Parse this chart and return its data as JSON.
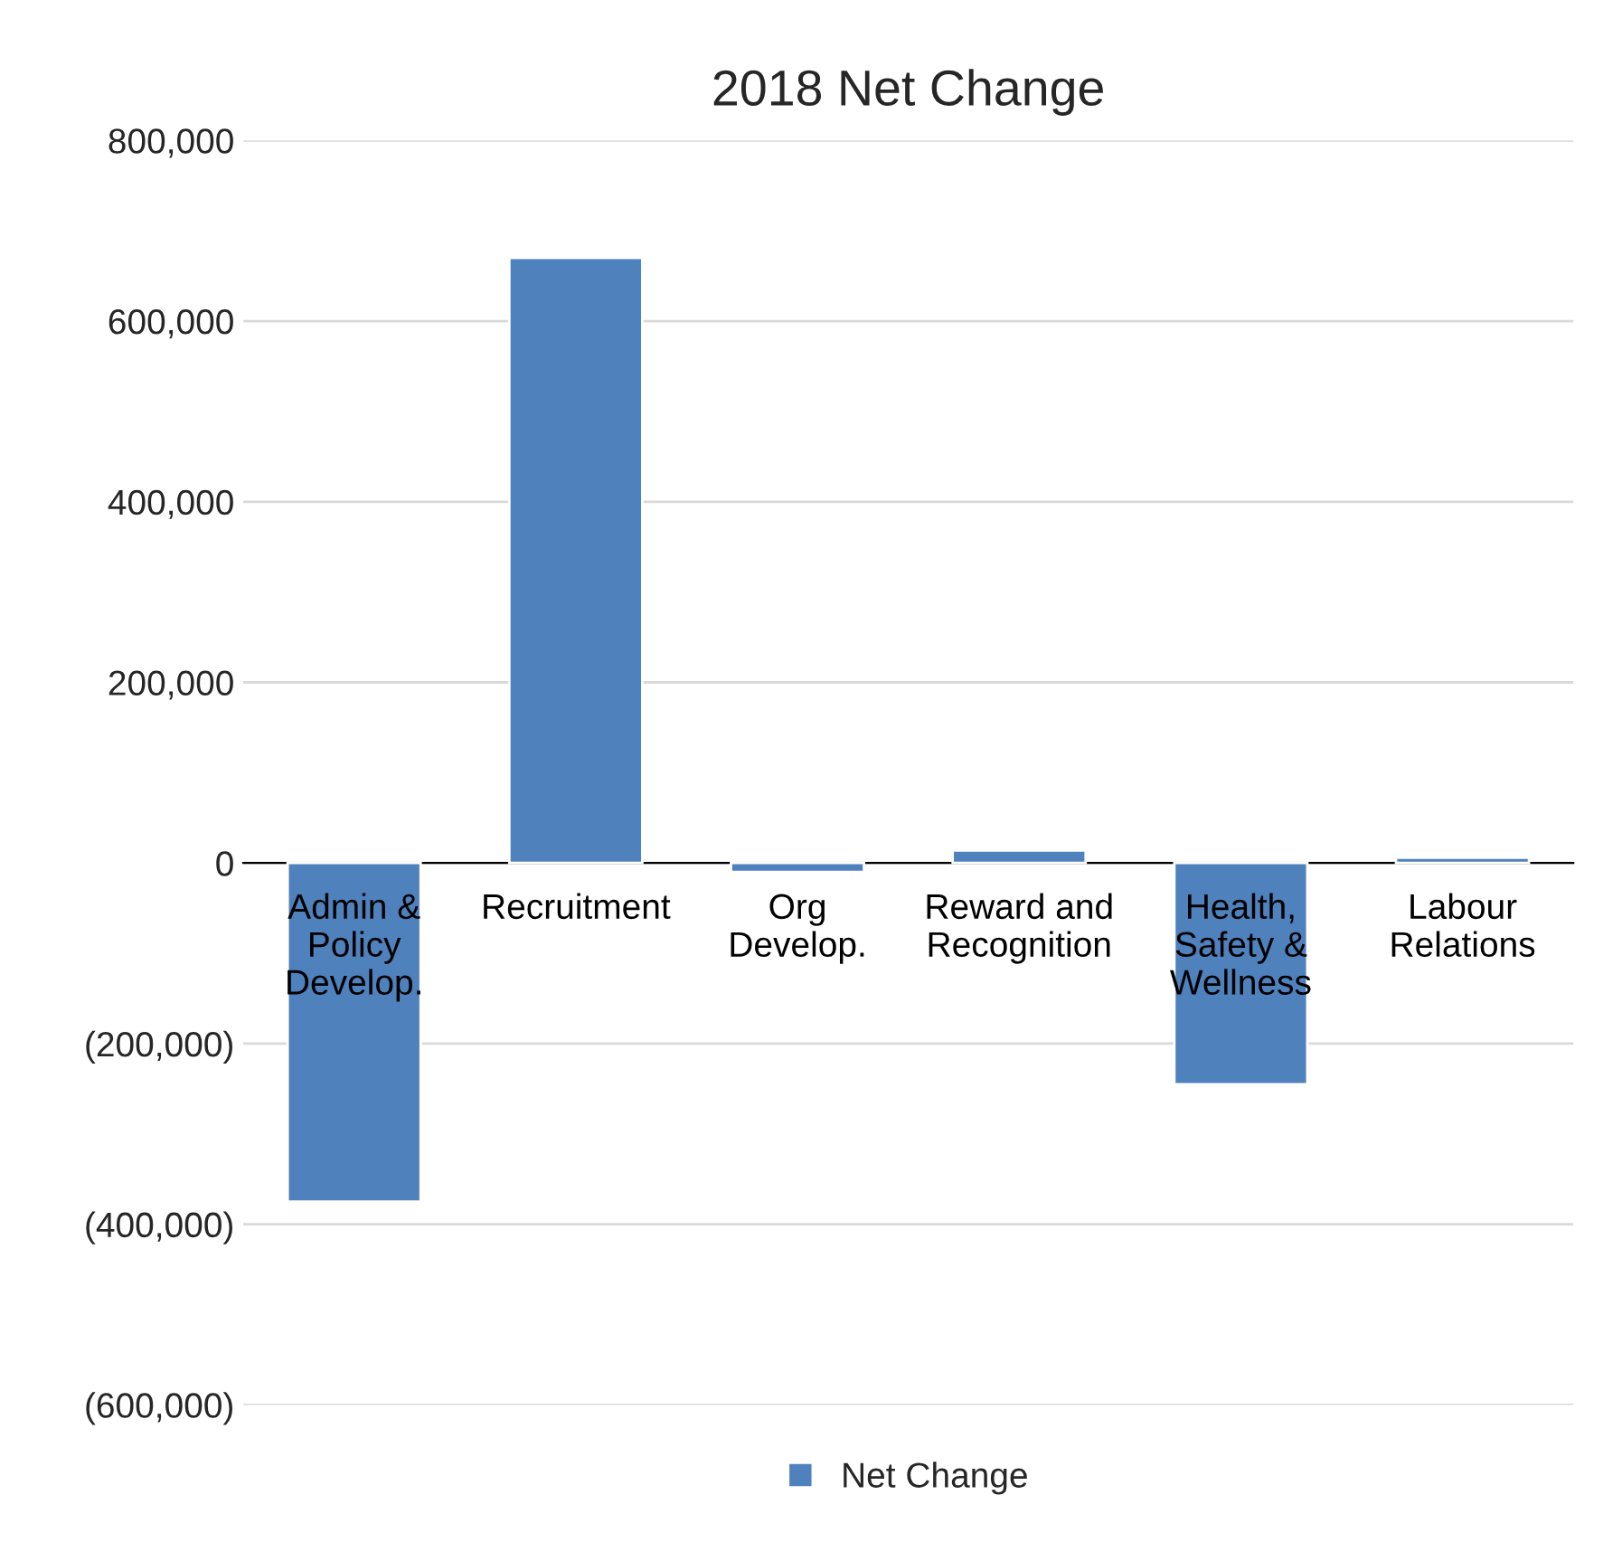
{
  "chart_data": {
    "type": "bar",
    "title": "2018 Net Change",
    "categories": [
      "Admin &\nPolicy\nDevelop.",
      "Recruitment",
      "Org\nDevelop.",
      "Reward and\nRecognition",
      "Health,\nSafety &\nWellness",
      "Labour\nRelations"
    ],
    "series": [
      {
        "name": "Net Change",
        "color": "#4f81bd",
        "values": [
          -375000,
          670000,
          -10000,
          14000,
          -245000,
          6000
        ]
      }
    ],
    "ylim": [
      -600000,
      800000
    ],
    "yticks": [
      {
        "value": -600000,
        "label": "(600,000)"
      },
      {
        "value": -400000,
        "label": "(400,000)"
      },
      {
        "value": -200000,
        "label": "(200,000)"
      },
      {
        "value": 0,
        "label": "0"
      },
      {
        "value": 200000,
        "label": "200,000"
      },
      {
        "value": 400000,
        "label": "400,000"
      },
      {
        "value": 600000,
        "label": "600,000"
      },
      {
        "value": 800000,
        "label": "800,000"
      }
    ],
    "grid": "y",
    "legend": "bottom"
  }
}
